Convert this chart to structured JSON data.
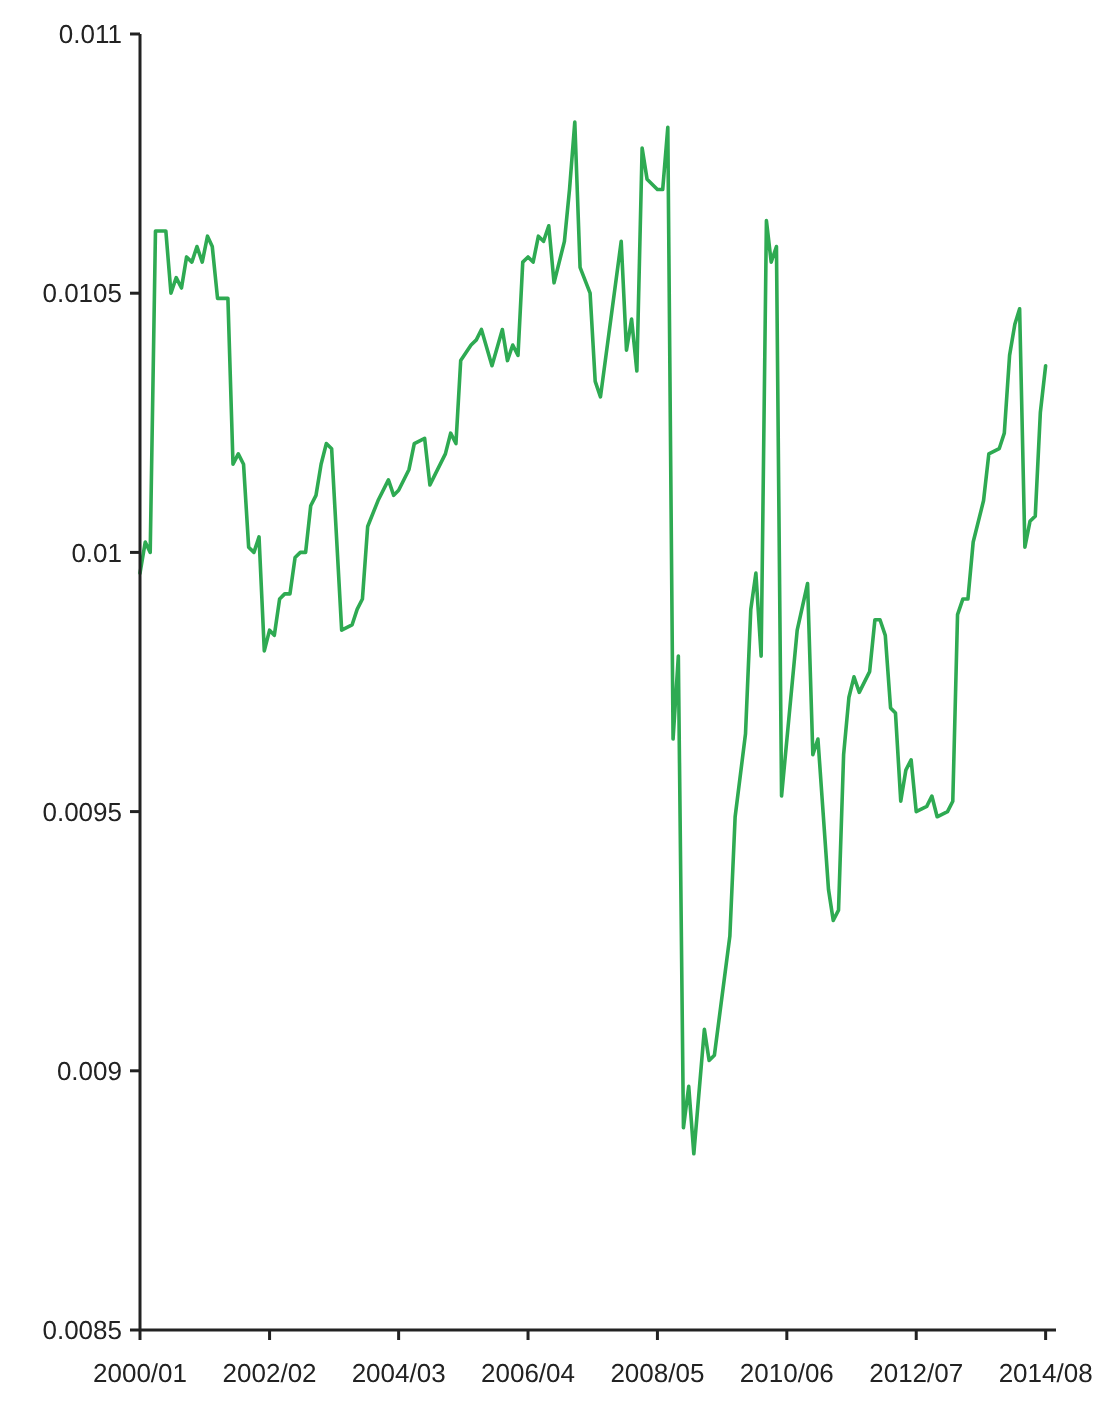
{
  "chart_data": {
    "type": "line",
    "x": [
      "2000-01",
      "2000-02",
      "2000-03",
      "2000-04",
      "2000-05",
      "2000-06",
      "2000-07",
      "2000-08",
      "2000-09",
      "2000-10",
      "2000-11",
      "2000-12",
      "2001-01",
      "2001-02",
      "2001-03",
      "2001-04",
      "2001-06",
      "2001-07",
      "2001-08",
      "2001-09",
      "2001-10",
      "2001-11",
      "2001-12",
      "2002-01",
      "2002-02",
      "2002-03",
      "2002-04",
      "2002-05",
      "2002-06",
      "2002-07",
      "2002-08",
      "2002-09",
      "2002-10",
      "2002-11",
      "2002-12",
      "2003-01",
      "2003-02",
      "2003-04",
      "2003-06",
      "2003-07",
      "2003-08",
      "2003-09",
      "2003-11",
      "2004-01",
      "2004-02",
      "2004-03",
      "2004-05",
      "2004-06",
      "2004-08",
      "2004-09",
      "2004-10",
      "2004-12",
      "2005-01",
      "2005-02",
      "2005-03",
      "2005-05",
      "2005-06",
      "2005-07",
      "2005-09",
      "2005-11",
      "2005-12",
      "2006-01",
      "2006-02",
      "2006-03",
      "2006-04",
      "2006-05",
      "2006-06",
      "2006-07",
      "2006-08",
      "2006-09",
      "2006-11",
      "2006-12",
      "2007-01",
      "2007-02",
      "2007-04",
      "2007-05",
      "2007-06",
      "2007-10",
      "2007-11",
      "2007-12",
      "2008-01",
      "2008-02",
      "2008-03",
      "2008-05",
      "2008-06",
      "2008-07",
      "2008-08",
      "2008-09",
      "2008-10",
      "2008-11",
      "2008-12",
      "2009-02",
      "2009-03",
      "2009-04",
      "2009-07",
      "2009-08",
      "2009-10",
      "2009-11",
      "2009-12",
      "2010-01",
      "2010-02",
      "2010-03",
      "2010-04",
      "2010-05",
      "2010-08",
      "2010-10",
      "2010-11",
      "2010-12",
      "2011-02",
      "2011-03",
      "2011-04",
      "2011-05",
      "2011-06",
      "2011-07",
      "2011-08",
      "2011-10",
      "2011-11",
      "2011-12",
      "2012-01",
      "2012-02",
      "2012-03",
      "2012-04",
      "2012-05",
      "2012-06",
      "2012-07",
      "2012-09",
      "2012-10",
      "2012-11",
      "2013-01",
      "2013-02",
      "2013-03",
      "2013-04",
      "2013-05",
      "2013-06",
      "2013-08",
      "2013-09",
      "2013-11",
      "2013-12",
      "2014-01",
      "2014-02",
      "2014-03",
      "2014-04",
      "2014-05",
      "2014-06",
      "2014-07",
      "2014-08"
    ],
    "series": [
      {
        "color": "#2eaa52",
        "values": [
          0.00996,
          0.01002,
          0.01,
          0.01062,
          0.01062,
          0.01062,
          0.0105,
          0.01053,
          0.01051,
          0.01057,
          0.01056,
          0.01059,
          0.01056,
          0.01061,
          0.01059,
          0.01049,
          0.01049,
          0.01017,
          0.01019,
          0.01017,
          0.01001,
          0.01,
          0.01003,
          0.00981,
          0.00985,
          0.00984,
          0.00991,
          0.00992,
          0.00992,
          0.00999,
          0.01,
          0.01,
          0.01009,
          0.01011,
          0.01017,
          0.01021,
          0.0102,
          0.00985,
          0.00986,
          0.00989,
          0.00991,
          0.01005,
          0.0101,
          0.01014,
          0.01011,
          0.01012,
          0.01016,
          0.01021,
          0.01022,
          0.01013,
          0.01015,
          0.01019,
          0.01023,
          0.01021,
          0.01037,
          0.0104,
          0.01041,
          0.01043,
          0.01036,
          0.01043,
          0.01037,
          0.0104,
          0.01038,
          0.01056,
          0.01057,
          0.01056,
          0.01061,
          0.0106,
          0.01063,
          0.01052,
          0.0106,
          0.0107,
          0.01083,
          0.01055,
          0.0105,
          0.01033,
          0.0103,
          0.0106,
          0.01039,
          0.01045,
          0.01035,
          0.01078,
          0.01072,
          0.0107,
          0.0107,
          0.01082,
          0.00964,
          0.0098,
          0.00889,
          0.00897,
          0.00884,
          0.00908,
          0.00902,
          0.00903,
          0.00926,
          0.00949,
          0.00965,
          0.00989,
          0.00996,
          0.0098,
          0.01064,
          0.01056,
          0.01059,
          0.00953,
          0.00985,
          0.00994,
          0.00961,
          0.00964,
          0.00935,
          0.00929,
          0.00931,
          0.00961,
          0.00972,
          0.00976,
          0.00973,
          0.00977,
          0.00987,
          0.00987,
          0.00984,
          0.0097,
          0.00969,
          0.00952,
          0.00958,
          0.0096,
          0.0095,
          0.00951,
          0.00953,
          0.00949,
          0.0095,
          0.00952,
          0.00988,
          0.00991,
          0.00991,
          0.01002,
          0.0101,
          0.01019,
          0.0102,
          0.01023,
          0.01038,
          0.01044,
          0.01047,
          0.01001,
          0.01006,
          0.01007,
          0.01027,
          0.01036
        ]
      }
    ],
    "xlim": [
      "2000-01",
      "2014-10"
    ],
    "xticks": [
      {
        "value": "2000-01",
        "label": "2000/01"
      },
      {
        "value": "2002-02",
        "label": "2002/02"
      },
      {
        "value": "2004-03",
        "label": "2004/03"
      },
      {
        "value": "2006-04",
        "label": "2006/04"
      },
      {
        "value": "2008-05",
        "label": "2008/05"
      },
      {
        "value": "2010-06",
        "label": "2010/06"
      },
      {
        "value": "2012-07",
        "label": "2012/07"
      },
      {
        "value": "2014-08",
        "label": "2014/08"
      }
    ],
    "ylim": [
      0.0085,
      0.011
    ],
    "yticks": [
      0.0085,
      0.009,
      0.0095,
      0.01,
      0.0105,
      0.011
    ],
    "grid": false,
    "marker": "none",
    "line_style": "solid"
  }
}
